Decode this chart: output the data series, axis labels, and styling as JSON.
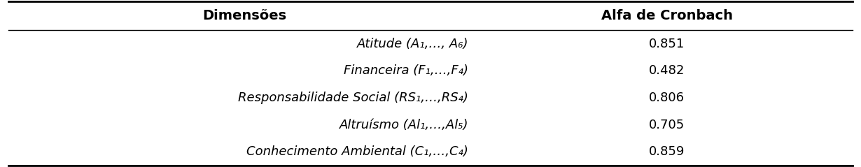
{
  "col_headers": [
    "Dimensões",
    "Alfa de Cronbach"
  ],
  "rows": [
    [
      "Atitude (A₁,…, A₆)",
      "0.851"
    ],
    [
      "Financeira (F₁,…,F₄)",
      "0.482"
    ],
    [
      "Responsabilidade Social (RS₁,…,RS₄)",
      "0.806"
    ],
    [
      "Altruísmo (Al₁,…,Al₅)",
      "0.705"
    ],
    [
      "Conhecimento Ambiental (C₁,…,C₄)",
      "0.859"
    ]
  ],
  "col_split": 0.56,
  "background_color": "#ffffff",
  "line_color": "#000000",
  "text_color": "#000000",
  "header_fontsize": 14,
  "row_fontsize": 13,
  "fig_width": 12.3,
  "fig_height": 2.39,
  "dpi": 100
}
